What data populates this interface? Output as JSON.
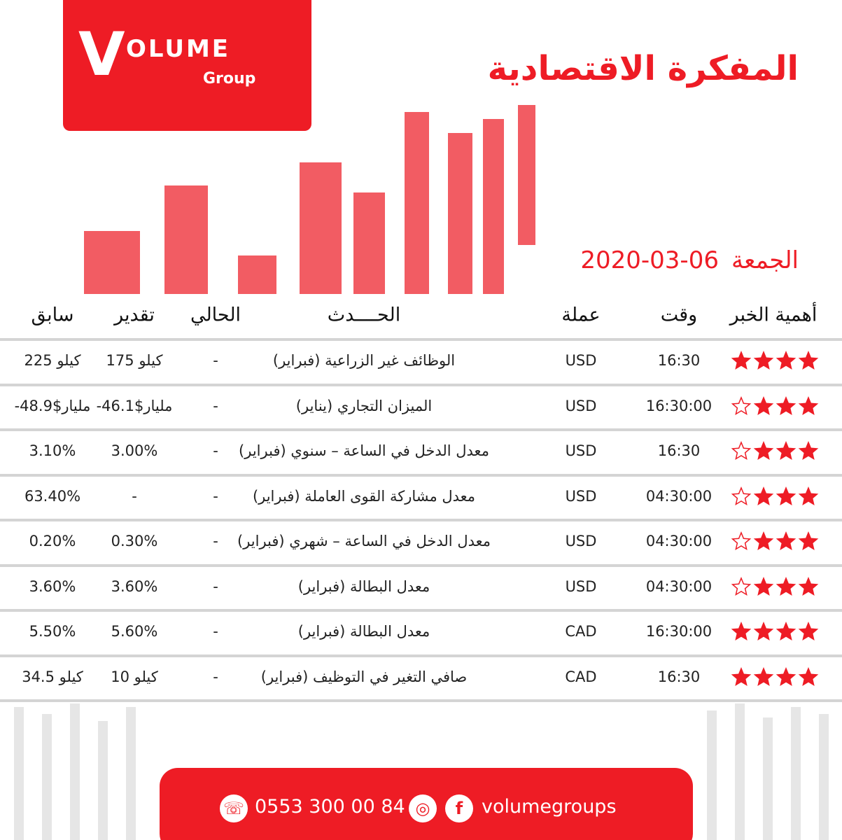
{
  "logo": {
    "name": "OLUME",
    "sub": "Group"
  },
  "header": {
    "title": "المفكرة الاقتصادية",
    "day": "الجمعة",
    "date": "2020-03-06"
  },
  "table": {
    "columns": [
      "أهمية الخبر",
      "وقت",
      "عملة",
      "الحــــدث",
      "الحالي",
      "تقدير",
      "سابق"
    ],
    "rows": [
      {
        "importance": 4,
        "time": "16:30",
        "currency": "USD",
        "event": "الوظائف غير الزراعية (فبراير)",
        "actual": "-",
        "forecast": "كيلو 175",
        "previous": "225 كيلو"
      },
      {
        "importance": 3,
        "time": "16:30:00",
        "currency": "USD",
        "event": "الميزان التجاري (يناير)",
        "actual": "-",
        "forecast": "-46.1$مليار",
        "previous": "-48.9$مليار"
      },
      {
        "importance": 3,
        "time": "16:30",
        "currency": "USD",
        "event": "معدل الدخل في الساعة – سنوي (فبراير)",
        "actual": "-",
        "forecast": "3.00%",
        "previous": "3.10%"
      },
      {
        "importance": 3,
        "time": "04:30:00",
        "currency": "USD",
        "event": "معدل مشاركة القوى العاملة (فبراير)",
        "actual": "-",
        "forecast": "-",
        "previous": "63.40%"
      },
      {
        "importance": 3,
        "time": "04:30:00",
        "currency": "USD",
        "event": "معدل الدخل في الساعة – شهري (فبراير)",
        "actual": "-",
        "forecast": "0.30%",
        "previous": "0.20%"
      },
      {
        "importance": 3,
        "time": "04:30:00",
        "currency": "USD",
        "event": "معدل البطالة (فبراير)",
        "actual": "-",
        "forecast": "3.60%",
        "previous": "3.60%"
      },
      {
        "importance": 4,
        "time": "16:30:00",
        "currency": "CAD",
        "event": "معدل البطالة (فبراير)",
        "actual": "-",
        "forecast": "5.60%",
        "previous": "5.50%"
      },
      {
        "importance": 4,
        "time": "16:30",
        "currency": "CAD",
        "event": "صافي التغير في التوظيف (فبراير)",
        "actual": "-",
        "forecast": "كيلو 10",
        "previous": "34.5 كيلو"
      }
    ]
  },
  "footer": {
    "phone": "0553 300 00 84",
    "social": "volumegroups"
  }
}
